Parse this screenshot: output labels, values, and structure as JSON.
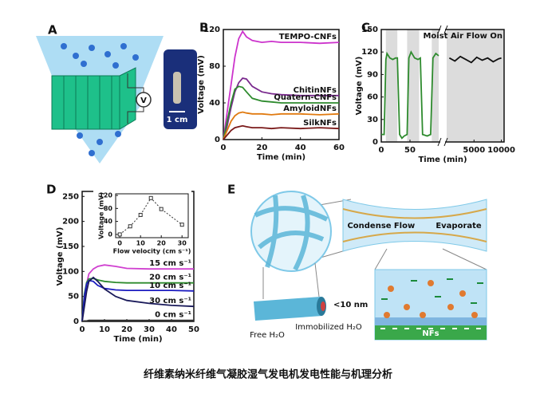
{
  "chart_data": [
    {
      "type": "line",
      "label": "B",
      "xlabel": "Time (min)",
      "ylabel": "Voltage (mV)",
      "legend": "line-end",
      "x": [
        0,
        2,
        4,
        6,
        8,
        10,
        12,
        15,
        20,
        25,
        30,
        40,
        50,
        60
      ],
      "xlim": [
        0,
        60
      ],
      "xticks": [
        0,
        20,
        40,
        60
      ],
      "ylim": [
        0,
        120
      ],
      "yticks": [
        0,
        40,
        80,
        120
      ],
      "series": [
        {
          "name": "TEMPO-CNFs",
          "color": "#cc33cc",
          "values": [
            0,
            30,
            60,
            90,
            110,
            118,
            112,
            108,
            106,
            107,
            106,
            106,
            105,
            106
          ]
        },
        {
          "name": "ChitinNFs",
          "color": "#7a2a8e",
          "values": [
            0,
            15,
            35,
            52,
            62,
            67,
            66,
            58,
            52,
            50,
            49,
            48,
            48,
            48
          ]
        },
        {
          "name": "Quatern-CNFs",
          "color": "#2e8b2e",
          "values": [
            0,
            20,
            40,
            55,
            58,
            57,
            52,
            45,
            42,
            41,
            40,
            40,
            40,
            40
          ]
        },
        {
          "name": "AmyloidNFs",
          "color": "#e07a10",
          "values": [
            0,
            10,
            20,
            26,
            29,
            30,
            29,
            28,
            28,
            27,
            28,
            28,
            27,
            28
          ]
        },
        {
          "name": "SilkNFs",
          "color": "#7a1a1a",
          "values": [
            0,
            5,
            10,
            13,
            14,
            15,
            14,
            13,
            13,
            12,
            13,
            12,
            13,
            12
          ]
        }
      ]
    },
    {
      "type": "line",
      "label": "C",
      "xlabel": "Time (min)",
      "ylabel": "Voltage (mV)",
      "annotation": "Moist Air Flow On",
      "xlim_segments": [
        [
          0,
          100
        ],
        [
          0,
          10500
        ]
      ],
      "xticks": [
        0,
        50,
        5000,
        10000
      ],
      "ylim": [
        0,
        150
      ],
      "yticks": [
        0,
        30,
        60,
        90,
        120,
        150
      ],
      "shaded_x": [
        [
          8,
          28
        ],
        [
          45,
          66
        ],
        [
          88,
          100
        ],
        [
          0,
          10500
        ]
      ],
      "shade_color": "#dcdcdc",
      "series": [
        {
          "color": "#2e8b2e",
          "x": [
            0,
            5,
            8,
            10,
            15,
            20,
            25,
            28,
            32,
            36,
            40,
            45,
            48,
            52,
            58,
            64,
            68,
            72,
            80,
            86,
            90,
            95,
            100
          ],
          "values": [
            10,
            10,
            110,
            118,
            112,
            110,
            112,
            112,
            10,
            5,
            8,
            10,
            112,
            120,
            112,
            110,
            112,
            10,
            8,
            10,
            112,
            118,
            115
          ]
        },
        {
          "color": "#111111",
          "x": [
            500,
            1500,
            2500,
            3500,
            4500,
            5500,
            6500,
            7500,
            8500,
            9500,
            10000
          ],
          "values": [
            112,
            108,
            114,
            110,
            106,
            113,
            109,
            112,
            107,
            111,
            112
          ]
        }
      ]
    },
    {
      "type": "line",
      "label": "D",
      "xlabel": "Time (min)",
      "ylabel": "Voltage (mV)",
      "legend": "line-end",
      "x": [
        0,
        1,
        2,
        3,
        5,
        7,
        10,
        15,
        20,
        30,
        40,
        50
      ],
      "xlim": [
        0,
        50
      ],
      "xticks": [
        0,
        10,
        20,
        30,
        40,
        50
      ],
      "ylim": [
        0,
        260
      ],
      "yticks": [
        0,
        50,
        100,
        150,
        200,
        250
      ],
      "series": [
        {
          "name": "15 cm s⁻¹",
          "color": "#d040d0",
          "values": [
            0,
            40,
            75,
            95,
            105,
            110,
            113,
            110,
            106,
            105,
            105,
            105
          ]
        },
        {
          "name": "20 cm s⁻¹",
          "color": "#2e8b2e",
          "values": [
            0,
            55,
            78,
            85,
            86,
            83,
            80,
            78,
            77,
            77,
            77,
            77
          ]
        },
        {
          "name": "10 cm s⁻¹",
          "color": "#1c1cc0",
          "values": [
            0,
            50,
            75,
            82,
            80,
            72,
            66,
            63,
            62,
            62,
            62,
            61
          ]
        },
        {
          "name": "30 cm s⁻¹",
          "color": "#1a1a5a",
          "values": [
            0,
            30,
            60,
            80,
            88,
            80,
            65,
            50,
            42,
            36,
            32,
            30
          ]
        },
        {
          "name": "0 cm s⁻¹",
          "color": "#333333",
          "values": [
            0,
            1,
            1,
            2,
            2,
            2,
            2,
            2,
            2,
            2,
            2,
            2
          ]
        }
      ]
    },
    {
      "type": "line",
      "xlabel": "Flow velocity (cm s⁻¹)",
      "ylabel": "Voltage (mV)",
      "markers": true,
      "dashed": true,
      "x": [
        0,
        5,
        10,
        15,
        20,
        30
      ],
      "xlim": [
        -2,
        33
      ],
      "xticks": [
        0,
        10,
        20,
        30
      ],
      "ylim": [
        -10,
        125
      ],
      "yticks": [
        0,
        40,
        80,
        120
      ],
      "series": [
        {
          "color": "#333333",
          "values": [
            0,
            25,
            60,
            112,
            78,
            30
          ]
        }
      ]
    }
  ],
  "panel_a": {
    "label": "A",
    "meter": "V",
    "scale_bar": "1 cm"
  },
  "panel_e": {
    "label": "E",
    "condense": "Condense",
    "flow": "Flow",
    "evaporate": "Evaporate",
    "pore": "<10 nm",
    "free_water": "Free H₂O",
    "immobilized_water": "Immobilized H₂O",
    "substrate": "NFs"
  },
  "caption": "纤维素纳米纤维气凝胶湿气发电机发电性能与机理分析"
}
